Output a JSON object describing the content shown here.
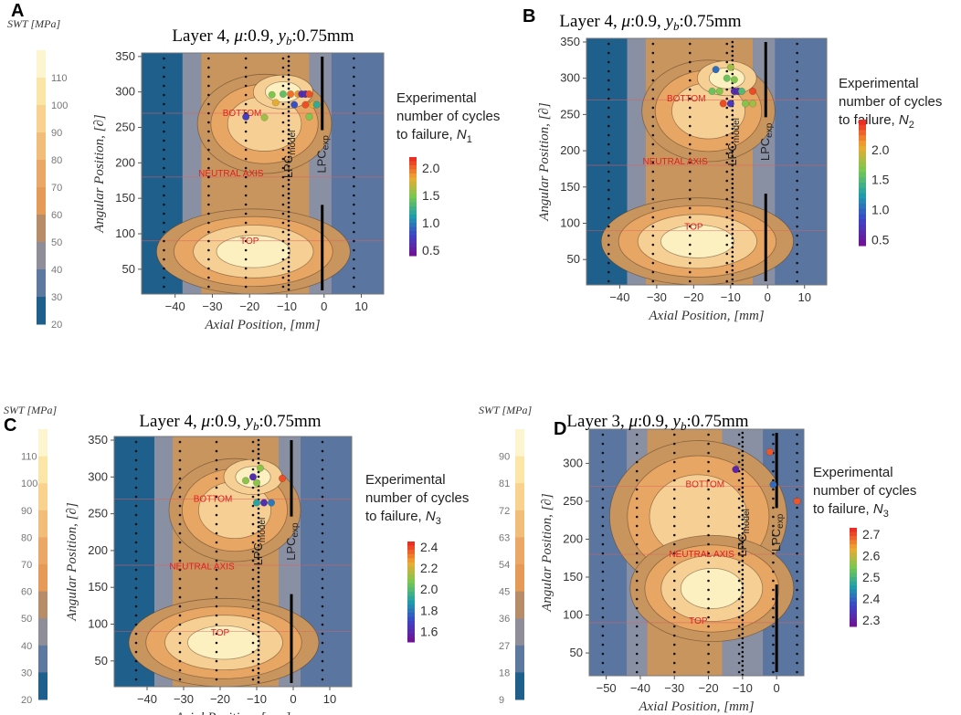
{
  "figure": {
    "colors": {
      "band_dark": "#1f5f8c",
      "band_mid": "#5a76a0",
      "band_grey": "#8a90a4",
      "band_tan": "#c8955e",
      "band_orange": "#e8a664",
      "band_light": "#f6cf94",
      "band_pale": "#fdf0c0",
      "ref_line": "#e06060"
    }
  },
  "swt_bars": [
    {
      "title": "SWT [MPa]",
      "ticks": [
        "110",
        "100",
        "90",
        "80",
        "70",
        "60",
        "50",
        "40",
        "30",
        "20"
      ],
      "colors": [
        "#fdf5cf",
        "#fbe6a8",
        "#f8d28e",
        "#f2bd78",
        "#eba766",
        "#e69a58",
        "#b78c68",
        "#8f8e98",
        "#5e79a0",
        "#1f5f8c"
      ]
    },
    {
      "title": "SWT [MPa]",
      "ticks": [
        "110",
        "100",
        "90",
        "80",
        "70",
        "60",
        "50",
        "40",
        "30",
        "20"
      ],
      "colors": [
        "#fdf5cf",
        "#fbe6a8",
        "#f8d28e",
        "#f2bd78",
        "#eba766",
        "#e69a58",
        "#b78c68",
        "#8f8e98",
        "#5e79a0",
        "#1f5f8c"
      ]
    },
    {
      "title": "SWT [MPa]",
      "ticks": [
        "90",
        "81",
        "72",
        "63",
        "54",
        "45",
        "36",
        "27",
        "18",
        "9"
      ],
      "colors": [
        "#fdf5cf",
        "#fbe6a8",
        "#f8d28e",
        "#f2bd78",
        "#eba766",
        "#e69a58",
        "#b78c68",
        "#8f8e98",
        "#5e79a0",
        "#1f5f8c"
      ]
    }
  ],
  "chart_data": [
    {
      "panel": "A",
      "type": "contour",
      "title": "Layer 4, μ:0.9, y_b:0.75mm",
      "title_parts": [
        "Layer 4, ",
        "μ",
        ":0.9, ",
        "y",
        "b",
        ":0.75mm"
      ],
      "xlabel": "Axial Position, [mm]",
      "ylabel": "Angular Position, [∂]",
      "xlim": [
        -49,
        16
      ],
      "ylim": [
        15,
        355
      ],
      "xticks": [
        -40,
        -30,
        -20,
        -10,
        0,
        10
      ],
      "yticks": [
        50,
        100,
        150,
        200,
        250,
        300,
        350
      ],
      "region_labels": [
        {
          "text": "BOTTOM",
          "x": -22,
          "y": 270
        },
        {
          "text": "NEUTRAL AXIS",
          "x": -25,
          "y": 185
        },
        {
          "text": "TOP",
          "x": -20,
          "y": 90
        }
      ],
      "lpc": [
        {
          "text": "LPC",
          "sub": "model",
          "x": -9.5
        },
        {
          "text": "LPC",
          "sub": "exp",
          "x": -0.5
        }
      ],
      "legend_lines": [
        "Experimental",
        "number of cycles",
        "to failure, "
      ],
      "legend_symbol": {
        "n": "N",
        "sub": "1"
      },
      "colorbar": {
        "ticks": [
          "2.0",
          "1.5",
          "1.0",
          "0.5"
        ],
        "range": [
          0.4,
          2.2
        ]
      },
      "points": [
        {
          "x": -21,
          "y": 265,
          "v": 0.7
        },
        {
          "x": -14,
          "y": 296,
          "v": 1.5
        },
        {
          "x": -13,
          "y": 285,
          "v": 1.8
        },
        {
          "x": -11,
          "y": 297,
          "v": 1.4
        },
        {
          "x": -9,
          "y": 297,
          "v": 2.0
        },
        {
          "x": -8,
          "y": 282,
          "v": 0.8
        },
        {
          "x": -7,
          "y": 297,
          "v": 1.9
        },
        {
          "x": -6,
          "y": 297,
          "v": 0.6
        },
        {
          "x": -5,
          "y": 282,
          "v": 2.1
        },
        {
          "x": -5,
          "y": 297,
          "v": 0.6
        },
        {
          "x": -4,
          "y": 297,
          "v": 2.1
        },
        {
          "x": -4,
          "y": 265,
          "v": 1.5
        },
        {
          "x": -3,
          "y": 282,
          "v": 1.8
        },
        {
          "x": -2,
          "y": 282,
          "v": 1.2
        },
        {
          "x": -16,
          "y": 264,
          "v": 1.6
        }
      ]
    },
    {
      "panel": "B",
      "type": "contour",
      "title": "Layer 4, μ:0.9, y_b:0.75mm",
      "title_parts": [
        "Layer 4, ",
        "μ",
        ":0.9, ",
        "y",
        "b",
        ":0.75mm"
      ],
      "xlabel": "Axial Position, [mm]",
      "ylabel": "Angular Position, [∂]",
      "xlim": [
        -49,
        16
      ],
      "ylim": [
        15,
        355
      ],
      "xticks": [
        -40,
        -30,
        -20,
        -10,
        0,
        10
      ],
      "yticks": [
        50,
        100,
        150,
        200,
        250,
        300,
        350
      ],
      "region_labels": [
        {
          "text": "BOTTOM",
          "x": -22,
          "y": 272
        },
        {
          "text": "NEUTRAL AXIS",
          "x": -25,
          "y": 185
        },
        {
          "text": "TOP",
          "x": -20,
          "y": 95
        }
      ],
      "lpc": [
        {
          "text": "LPC",
          "sub": "model",
          "x": -9.5
        },
        {
          "text": "LPC",
          "sub": "exp",
          "x": -0.5
        }
      ],
      "legend_lines": [
        "Experimental",
        "number of cycles",
        "to failure, "
      ],
      "legend_symbol": {
        "n": "N",
        "sub": "2"
      },
      "colorbar": {
        "ticks": [
          "2.0",
          "1.5",
          "1.0",
          "0.5"
        ],
        "range": [
          0.4,
          2.5
        ]
      },
      "points": [
        {
          "x": -14,
          "y": 312,
          "v": 1.0
        },
        {
          "x": -13,
          "y": 282,
          "v": 1.7
        },
        {
          "x": -11,
          "y": 300,
          "v": 1.6
        },
        {
          "x": -10,
          "y": 315,
          "v": 1.8
        },
        {
          "x": -9,
          "y": 282,
          "v": 0.6
        },
        {
          "x": -9,
          "y": 298,
          "v": 1.7
        },
        {
          "x": -8,
          "y": 282,
          "v": 0.6
        },
        {
          "x": -7,
          "y": 282,
          "v": 1.5
        },
        {
          "x": -6,
          "y": 265,
          "v": 1.7
        },
        {
          "x": -4,
          "y": 282,
          "v": 2.4
        },
        {
          "x": -4,
          "y": 265,
          "v": 1.8
        },
        {
          "x": -12,
          "y": 265,
          "v": 2.4
        },
        {
          "x": -10,
          "y": 265,
          "v": 0.7
        },
        {
          "x": -15,
          "y": 282,
          "v": 1.6
        }
      ]
    },
    {
      "panel": "C",
      "type": "contour",
      "title": "Layer 4, μ:0.9, y_b:0.75mm",
      "title_parts": [
        "Layer 4, ",
        "μ",
        ":0.9, ",
        "y",
        "b",
        ":0.75mm"
      ],
      "xlabel": "Axial Position, [mm]",
      "ylabel": "Angular Position, [∂]",
      "xlim": [
        -49,
        16
      ],
      "ylim": [
        15,
        355
      ],
      "xticks": [
        -40,
        -30,
        -20,
        -10,
        0,
        10
      ],
      "yticks": [
        50,
        100,
        150,
        200,
        250,
        300,
        350
      ],
      "region_labels": [
        {
          "text": "BOTTOM",
          "x": -22,
          "y": 270
        },
        {
          "text": "NEUTRAL AXIS",
          "x": -25,
          "y": 178
        },
        {
          "text": "TOP",
          "x": -20,
          "y": 88
        }
      ],
      "lpc": [
        {
          "text": "LPC",
          "sub": "model",
          "x": -9.5
        },
        {
          "text": "LPC",
          "sub": "exp",
          "x": -0.5
        }
      ],
      "legend_lines": [
        "Experimental",
        "number of cycles",
        "to failure, "
      ],
      "legend_symbol": {
        "n": "N",
        "sub": "3"
      },
      "colorbar": {
        "ticks": [
          "2.4",
          "2.2",
          "2.0",
          "1.8",
          "1.6"
        ],
        "range": [
          1.5,
          2.45
        ]
      },
      "points": [
        {
          "x": -13,
          "y": 295,
          "v": 2.1
        },
        {
          "x": -11,
          "y": 300,
          "v": 1.6
        },
        {
          "x": -10,
          "y": 265,
          "v": 1.9
        },
        {
          "x": -9,
          "y": 312,
          "v": 2.1
        },
        {
          "x": -8,
          "y": 265,
          "v": 1.6
        },
        {
          "x": -6,
          "y": 265,
          "v": 1.8
        },
        {
          "x": -3,
          "y": 298,
          "v": 2.4
        },
        {
          "x": -10,
          "y": 292,
          "v": 2.1
        }
      ]
    },
    {
      "panel": "D",
      "type": "contour",
      "title": "Layer 3, μ:0.9, y_b:0.75mm",
      "title_parts": [
        "Layer 3, ",
        "μ",
        ":0.9, ",
        "y",
        "b",
        ":0.75mm"
      ],
      "xlabel": "Axial Position, [mm]",
      "ylabel": "Angular Position, [∂]",
      "xlim": [
        -55,
        8
      ],
      "ylim": [
        20,
        345
      ],
      "xticks": [
        -50,
        -40,
        -30,
        -20,
        -10,
        0
      ],
      "yticks": [
        50,
        100,
        150,
        200,
        250,
        300
      ],
      "region_labels": [
        {
          "text": "BOTTOM",
          "x": -21,
          "y": 272
        },
        {
          "text": "NEUTRAL AXIS",
          "x": -22,
          "y": 180
        },
        {
          "text": "TOP",
          "x": -23,
          "y": 92
        }
      ],
      "lpc": [
        {
          "text": "LPC",
          "sub": "model",
          "x": -10
        },
        {
          "text": "LPC",
          "sub": "exp",
          "x": 0
        }
      ],
      "legend_lines": [
        "Experimental",
        "number of cycles",
        "to failure, "
      ],
      "legend_symbol": {
        "n": "N",
        "sub": "3"
      },
      "colorbar": {
        "ticks": [
          "2.7",
          "2.6",
          "2.5",
          "2.4",
          "2.3"
        ],
        "range": [
          2.27,
          2.73
        ]
      },
      "points": [
        {
          "x": -12,
          "y": 292,
          "v": 2.3
        },
        {
          "x": -2,
          "y": 315,
          "v": 2.7
        },
        {
          "x": -1,
          "y": 272,
          "v": 2.4
        },
        {
          "x": 6,
          "y": 250,
          "v": 2.7
        }
      ]
    }
  ]
}
